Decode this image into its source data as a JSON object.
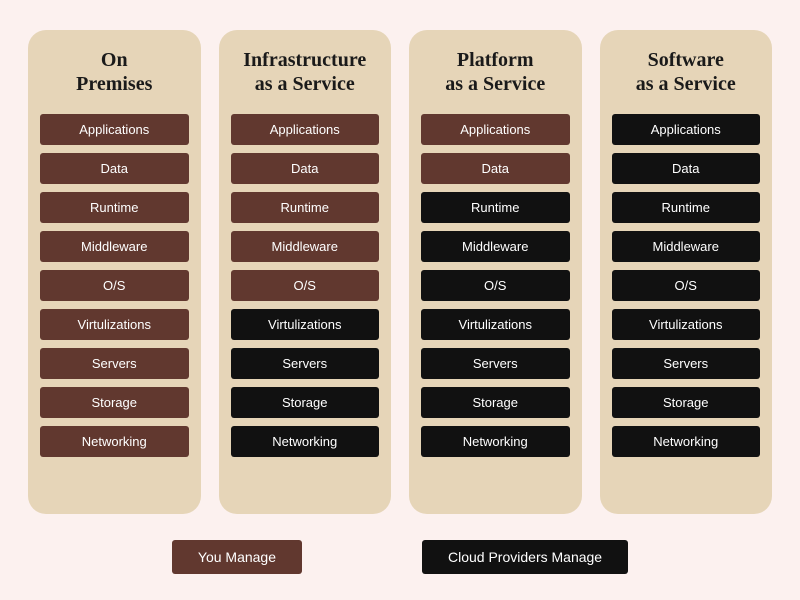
{
  "background_color": "#fcf1ef",
  "column_background": "#e6d5b8",
  "column_border_radius": 18,
  "title_color": "#1a1a1a",
  "title_fontsize": 20,
  "layer_fontsize": 13,
  "layer_text_color": "#ffffff",
  "legend_fontsize": 14,
  "palette": {
    "you_manage": "#61382f",
    "provider_manage": "#111111"
  },
  "layers": [
    "Applications",
    "Data",
    "Runtime",
    "Middleware",
    "O/S",
    "Virtulizations",
    "Servers",
    "Storage",
    "Networking"
  ],
  "columns": [
    {
      "id": "on-premises",
      "title": "On\nPremises",
      "managed_by": [
        "you",
        "you",
        "you",
        "you",
        "you",
        "you",
        "you",
        "you",
        "you"
      ]
    },
    {
      "id": "iaas",
      "title": "Infrastructure\nas a Service",
      "managed_by": [
        "you",
        "you",
        "you",
        "you",
        "you",
        "provider",
        "provider",
        "provider",
        "provider"
      ]
    },
    {
      "id": "paas",
      "title": "Platform\nas a Service",
      "managed_by": [
        "you",
        "you",
        "provider",
        "provider",
        "provider",
        "provider",
        "provider",
        "provider",
        "provider"
      ]
    },
    {
      "id": "saas",
      "title": "Software\nas a Service",
      "managed_by": [
        "provider",
        "provider",
        "provider",
        "provider",
        "provider",
        "provider",
        "provider",
        "provider",
        "provider"
      ]
    }
  ],
  "legend": {
    "you": "You Manage",
    "provider": "Cloud Providers Manage"
  }
}
